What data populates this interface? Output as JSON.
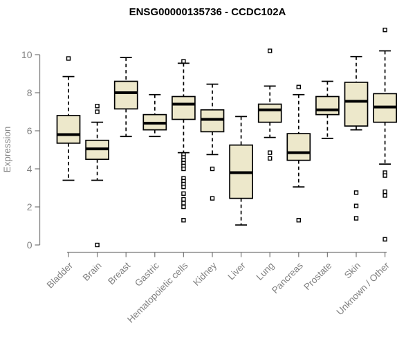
{
  "chart_data": {
    "type": "boxplot",
    "title": "ENSG00000135736 - CCDC102A",
    "xlabel": "",
    "ylabel": "Expression",
    "ylim": [
      0,
      10
    ],
    "yticks": [
      0,
      2,
      4,
      6,
      8,
      10
    ],
    "grid": false,
    "legend": "none",
    "categories": [
      "Bladder",
      "Brain",
      "Breast",
      "Gastric",
      "Hematopoietic cells",
      "Kidney",
      "Liver",
      "Lung",
      "Pancreas",
      "Prostate",
      "Skin",
      "Unknown / Other"
    ],
    "boxes": [
      {
        "category": "Bladder",
        "low": 3.4,
        "q1": 5.35,
        "median": 5.8,
        "q3": 6.8,
        "high": 8.85,
        "outliers": [
          9.8
        ]
      },
      {
        "category": "Brain",
        "low": 3.4,
        "q1": 4.5,
        "median": 5.05,
        "q3": 5.5,
        "high": 6.45,
        "outliers": [
          7.3,
          7.0,
          0.0
        ]
      },
      {
        "category": "Breast",
        "low": 5.7,
        "q1": 7.15,
        "median": 8.0,
        "q3": 8.6,
        "high": 9.85,
        "outliers": []
      },
      {
        "category": "Gastric",
        "low": 5.7,
        "q1": 6.05,
        "median": 6.4,
        "q3": 6.85,
        "high": 7.9,
        "outliers": []
      },
      {
        "category": "Hematopoietic cells",
        "low": 4.85,
        "q1": 6.6,
        "median": 7.4,
        "q3": 7.8,
        "high": 9.55,
        "outliers": [
          9.65,
          4.75,
          4.6,
          4.45,
          4.3,
          4.15,
          4.0,
          3.5,
          3.35,
          3.2,
          3.05,
          2.7,
          2.4,
          2.2,
          2.0,
          1.3
        ]
      },
      {
        "category": "Kidney",
        "low": 4.75,
        "q1": 5.95,
        "median": 6.6,
        "q3": 7.1,
        "high": 8.45,
        "outliers": [
          4.0,
          2.45
        ]
      },
      {
        "category": "Liver",
        "low": 1.05,
        "q1": 2.45,
        "median": 3.8,
        "q3": 5.25,
        "high": 6.75,
        "outliers": []
      },
      {
        "category": "Lung",
        "low": 5.65,
        "q1": 6.45,
        "median": 7.1,
        "q3": 7.4,
        "high": 8.35,
        "outliers": [
          10.2,
          4.85,
          4.55
        ]
      },
      {
        "category": "Pancreas",
        "low": 3.05,
        "q1": 4.45,
        "median": 4.85,
        "q3": 5.85,
        "high": 7.9,
        "outliers": [
          8.3,
          1.3
        ]
      },
      {
        "category": "Prostate",
        "low": 5.6,
        "q1": 6.85,
        "median": 7.1,
        "q3": 7.8,
        "high": 8.6,
        "outliers": []
      },
      {
        "category": "Skin",
        "low": 6.05,
        "q1": 6.25,
        "median": 7.55,
        "q3": 8.55,
        "high": 9.9,
        "outliers": [
          2.75,
          2.05,
          1.4
        ]
      },
      {
        "category": "Unknown / Other",
        "low": 4.25,
        "q1": 6.45,
        "median": 7.25,
        "q3": 7.95,
        "high": 10.2,
        "outliers": [
          11.3,
          3.8,
          3.65,
          2.8,
          2.6,
          0.3
        ]
      }
    ],
    "style": {
      "box_fill": "#EDE8CB",
      "box_border": "#000000",
      "median_color": "#000000",
      "whisker_color": "#000000",
      "whisker_style": "dashed",
      "outlier_shape": "open-square",
      "outlier_fill": "#ffffff",
      "axis_color": "#808080",
      "tick_label_color": "#808080",
      "title_color": "#000000"
    }
  }
}
